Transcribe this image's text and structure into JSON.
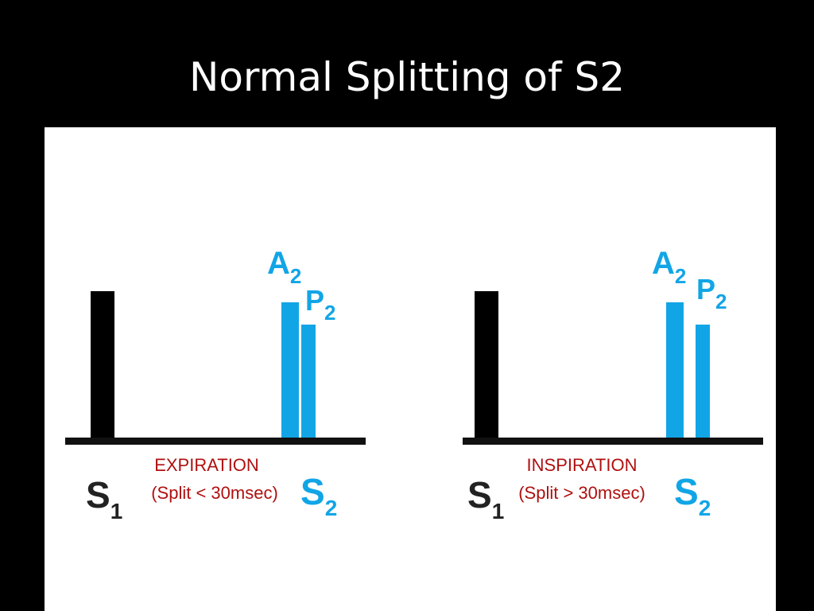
{
  "slide": {
    "title": "Normal Splitting of S2"
  },
  "colors": {
    "background": "#000000",
    "panel": "#ffffff",
    "s1": "#000000",
    "s2": "#12a5e6",
    "baseline": "#111111",
    "phase_text": "#b01010",
    "title_text": "#ffffff"
  },
  "diagrams": [
    {
      "phase": "EXPIRATION",
      "split": "(Split < 30msec)",
      "s1_label": "S",
      "s1_sub": "1",
      "s2_label": "S",
      "s2_sub": "2",
      "a2_label": "A",
      "a2_sub": "2",
      "p2_label": "P",
      "p2_sub": "2"
    },
    {
      "phase": "INSPIRATION",
      "split": "(Split > 30msec)",
      "s1_label": "S",
      "s1_sub": "1",
      "s2_label": "S",
      "s2_sub": "2",
      "a2_label": "A",
      "a2_sub": "2",
      "p2_label": "P",
      "p2_sub": "2"
    }
  ]
}
